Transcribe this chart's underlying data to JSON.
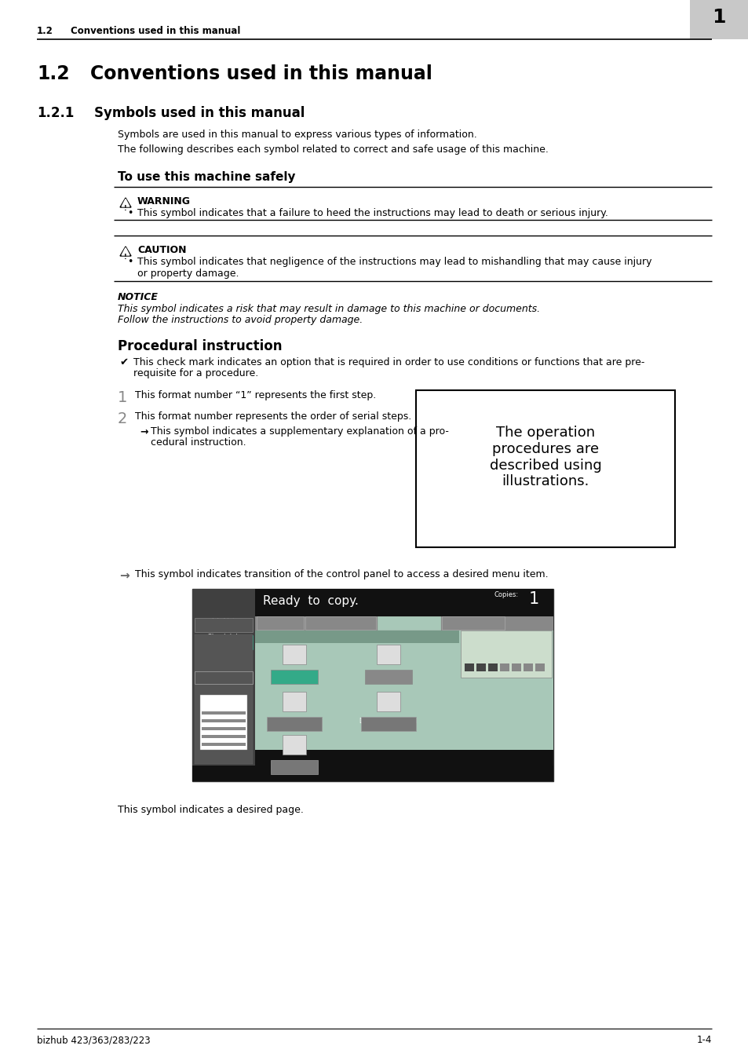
{
  "bg_color": "#ffffff",
  "header_text_left": "1.2      Conventions used in this manual",
  "footer_text_left": "bizhub 423/363/283/223",
  "footer_text_right": "1-4",
  "section_number": "1.2",
  "section_title": "Conventions used in this manual",
  "subsection_number": "1.2.1",
  "subsection_title": "Symbols used in this manual",
  "para1": "Symbols are used in this manual to express various types of information.",
  "para2": "The following describes each symbol related to correct and safe usage of this machine.",
  "safe_heading": "To use this machine safely",
  "warning_label": "WARNING",
  "warning_text": "This symbol indicates that a failure to heed the instructions may lead to death or serious injury.",
  "caution_label": "CAUTION",
  "caution_text1": "This symbol indicates that negligence of the instructions may lead to mishandling that may cause injury",
  "caution_text2": "or property damage.",
  "notice_label": "NOTICE",
  "notice_text1": "This symbol indicates a risk that may result in damage to this machine or documents.",
  "notice_text2": "Follow the instructions to avoid property damage.",
  "proc_heading": "Procedural instruction",
  "proc_check_line1": "This check mark indicates an option that is required in order to use conditions or functions that are pre-",
  "proc_check_line2": "requisite for a procedure.",
  "proc_1_text": "This format number “1” represents the first step.",
  "proc_2_text": "This format number represents the order of serial steps.",
  "proc_arrow_line1": "This symbol indicates a supplementary explanation of a pro-",
  "proc_arrow_line2": "cedural instruction.",
  "proc_box_text": "The operation\nprocedures are\ndescribed using\nillustrations.",
  "arrow_text": "This symbol indicates transition of the control panel to access a desired menu item.",
  "page_end_text": "This symbol indicates a desired page."
}
